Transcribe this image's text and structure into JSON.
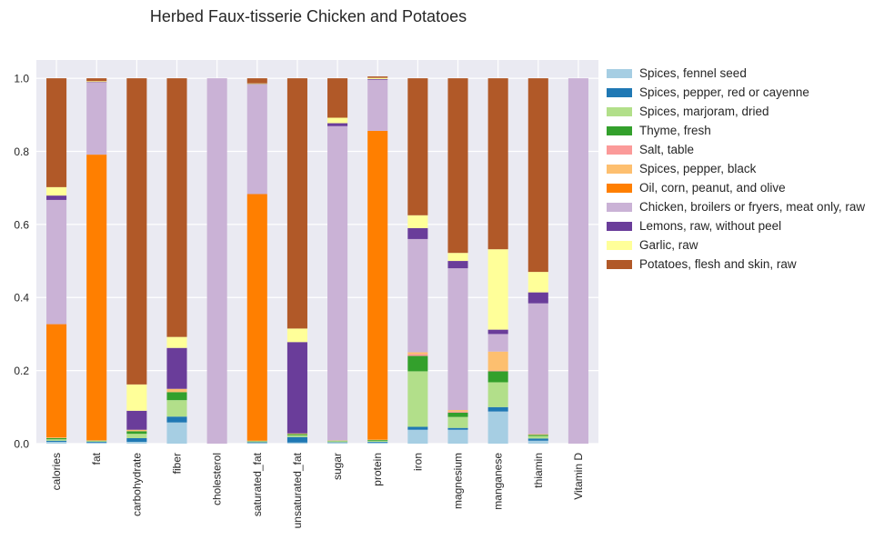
{
  "chart_data": {
    "type": "bar",
    "stacked": true,
    "title": "Herbed Faux-tisserie Chicken and Potatoes",
    "xlabel": "",
    "ylabel": "",
    "ylim": [
      0,
      1.05
    ],
    "yticks": [
      "0.0",
      "0.2",
      "0.4",
      "0.6",
      "0.8",
      "1.0"
    ],
    "grid": true,
    "legend_position": "right, outside plot",
    "categories": [
      "calories",
      "fat",
      "carbohydrate",
      "fiber",
      "cholesterol",
      "saturated_fat",
      "unsaturated_fat",
      "sugar",
      "protein",
      "iron",
      "magnesium",
      "manganese",
      "thiamin",
      "Vitamin D"
    ],
    "series": [
      {
        "name": "Spices, fennel seed",
        "color": "#a6cee3",
        "values": [
          0.005,
          0.003,
          0.005,
          0.058,
          0.0,
          0.002,
          0.003,
          0.003,
          0.003,
          0.038,
          0.038,
          0.088,
          0.008,
          0.0
        ]
      },
      {
        "name": "Spices, pepper, red or cayenne",
        "color": "#1f78b4",
        "values": [
          0.003,
          0.002,
          0.01,
          0.016,
          0.0,
          0.002,
          0.015,
          0.001,
          0.002,
          0.008,
          0.005,
          0.012,
          0.006,
          0.0
        ]
      },
      {
        "name": "Spices, marjoram, dried",
        "color": "#b2df8a",
        "values": [
          0.004,
          0.002,
          0.012,
          0.045,
          0.0,
          0.002,
          0.005,
          0.003,
          0.003,
          0.152,
          0.03,
          0.068,
          0.007,
          0.0
        ]
      },
      {
        "name": "Thyme, fresh",
        "color": "#33a02c",
        "values": [
          0.003,
          0.001,
          0.007,
          0.022,
          0.0,
          0.001,
          0.003,
          0.001,
          0.002,
          0.042,
          0.012,
          0.03,
          0.003,
          0.0
        ]
      },
      {
        "name": "Salt, table",
        "color": "#fb9a99",
        "values": [
          0.0,
          0.0,
          0.0,
          0.0,
          0.0,
          0.0,
          0.0,
          0.0,
          0.0,
          0.005,
          0.003,
          0.002,
          0.0,
          0.0
        ]
      },
      {
        "name": "Spices, pepper, black",
        "color": "#fdbf6f",
        "values": [
          0.002,
          0.001,
          0.004,
          0.009,
          0.0,
          0.001,
          0.002,
          0.001,
          0.001,
          0.005,
          0.004,
          0.052,
          0.002,
          0.0
        ]
      },
      {
        "name": "Oil, corn, peanut, and olive",
        "color": "#ff7f00",
        "values": [
          0.31,
          0.782,
          0.0,
          0.0,
          0.0,
          0.675,
          0.0,
          0.0,
          0.845,
          0.0,
          0.0,
          0.0,
          0.0,
          0.0
        ]
      },
      {
        "name": "Chicken, broilers or fryers, meat only, raw",
        "color": "#cab2d6",
        "values": [
          0.34,
          0.198,
          0.0,
          0.0,
          1.0,
          0.3,
          0.0,
          0.86,
          0.14,
          0.31,
          0.388,
          0.048,
          0.358,
          1.0
        ]
      },
      {
        "name": "Lemons, raw, without peel",
        "color": "#6a3d9a",
        "values": [
          0.012,
          0.001,
          0.052,
          0.112,
          0.0,
          0.001,
          0.25,
          0.008,
          0.002,
          0.03,
          0.02,
          0.012,
          0.03,
          0.0
        ]
      },
      {
        "name": "Garlic, raw",
        "color": "#ffff99",
        "values": [
          0.023,
          0.002,
          0.072,
          0.03,
          0.0,
          0.002,
          0.037,
          0.015,
          0.003,
          0.035,
          0.022,
          0.22,
          0.056,
          0.0
        ]
      },
      {
        "name": "Potatoes, flesh and skin, raw",
        "color": "#b15928",
        "values": [
          0.298,
          0.008,
          0.838,
          0.708,
          0.0,
          0.014,
          0.685,
          0.108,
          0.004,
          0.375,
          0.478,
          0.468,
          0.53,
          0.0
        ]
      }
    ]
  }
}
